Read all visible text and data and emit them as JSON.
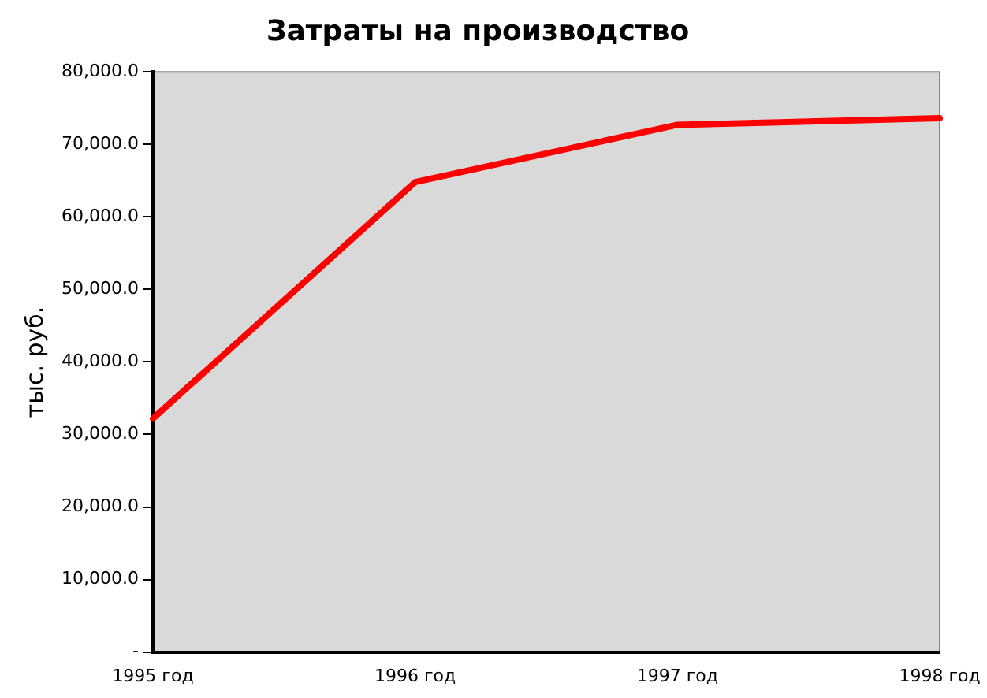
{
  "chart_data": {
    "type": "line",
    "title": "Затраты на производство",
    "ylabel": "тыс. руб.",
    "categories": [
      "1995 год",
      "1996 год",
      "1997 год",
      "1998 год"
    ],
    "series": [
      {
        "color": "#ff0000",
        "values": [
          32200,
          64800,
          72700,
          73600
        ]
      }
    ],
    "ylim": [
      0,
      80000
    ],
    "yticks": [
      {
        "value": 0,
        "label": "-"
      },
      {
        "value": 10000,
        "label": "10,000.0"
      },
      {
        "value": 20000,
        "label": "20,000.0"
      },
      {
        "value": 30000,
        "label": "30,000.0"
      },
      {
        "value": 40000,
        "label": "40,000.0"
      },
      {
        "value": 50000,
        "label": "50,000.0"
      },
      {
        "value": 60000,
        "label": "60,000.0"
      },
      {
        "value": 70000,
        "label": "70,000.0"
      },
      {
        "value": 80000,
        "label": "80,000.0"
      }
    ],
    "grid": false,
    "legend": false,
    "marker": "none",
    "line_style": "solid"
  }
}
